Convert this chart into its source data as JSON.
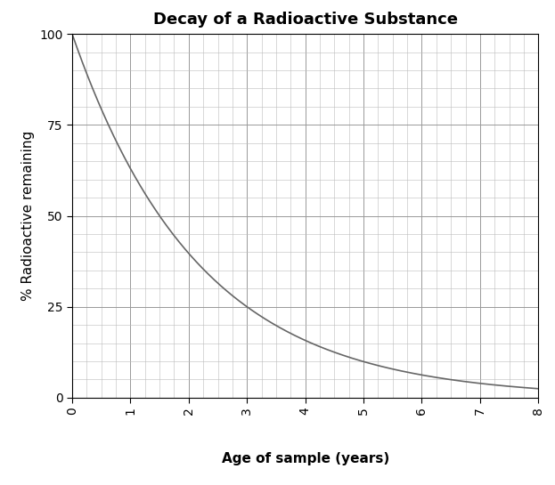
{
  "title": "Decay of a Radioactive Substance",
  "xlabel": "Age of sample (years)",
  "ylabel": "% Radioactive remaining",
  "x_min": 0,
  "x_max": 8,
  "y_min": 0,
  "y_max": 100,
  "x_major_tick": 1,
  "x_minor_tick": 0.25,
  "y_major_tick": 25,
  "y_minor_tick": 5,
  "half_life": 1.5,
  "line_color": "#666666",
  "line_width": 1.2,
  "grid_major_color": "#999999",
  "grid_minor_color": "#bbbbbb",
  "grid_major_lw": 0.7,
  "grid_minor_lw": 0.4,
  "title_fontsize": 13,
  "label_fontsize": 11,
  "tick_fontsize": 10,
  "background_color": "#ffffff",
  "title_fontweight": "bold",
  "xlabel_fontweight": "bold",
  "x_tick_rotation": 90,
  "figwidth": 6.23,
  "figheight": 5.45,
  "dpi": 100
}
